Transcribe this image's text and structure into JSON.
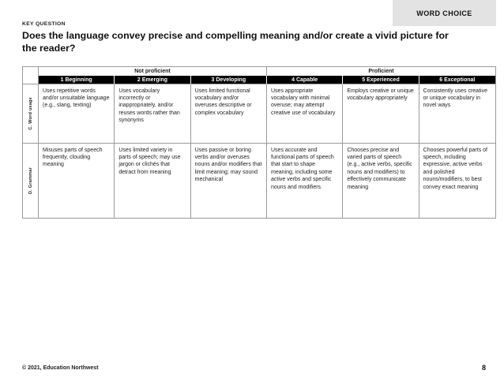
{
  "page": {
    "tag": "WORD CHOICE",
    "key_question_label": "KEY QUESTION",
    "title": "Does the language convey precise and compelling meaning and/or create a vivid picture for the reader?",
    "footer_copyright": "© 2021, Education Northwest",
    "page_number": "8"
  },
  "colors": {
    "tag_bg": "#e3e3e3",
    "band_bg": "#000000",
    "band_text": "#ffffff",
    "table_border": "#999999",
    "text": "#1a1a1a"
  },
  "table": {
    "group_headers": [
      "Not proficient",
      "Proficient"
    ],
    "level_headers": [
      "1 Beginning",
      "2 Emerging",
      "3 Developing",
      "4 Capable",
      "5 Experienced",
      "6 Exceptional"
    ],
    "rows": [
      {
        "label": "C. Word usage",
        "cells": [
          "Uses repetitive words and/or unsuitable language (e.g., slang, texting)",
          "Uses vocabulary incorrectly or inappropriately, and/or reuses words rather than synonyms",
          "Uses limited functional vocabulary and/or overuses descriptive or complex vocabulary",
          "Uses appropriate vocabulary with minimal overuse; may attempt creative use of vocabulary",
          "Employs creative or unique vocabulary appropriately",
          "Consistently uses creative or unique vocabulary in novel ways"
        ]
      },
      {
        "label": "D. Grammar",
        "cells": [
          "Misuses parts of speech frequently, clouding meaning",
          "Uses limited variety in parts of speech; may use jargon or clichés that detract from meaning",
          "Uses passive or boring verbs and/or overuses nouns and/or modifiers that limit meaning; may sound mechanical",
          "Uses accurate and functional parts of speech that start to shape meaning, including some active verbs and specific nouns and modifiers",
          "Chooses precise and varied parts of speech (e.g., active verbs, specific nouns and modifiers) to effectively communicate meaning",
          "Chooses powerful parts of speech, including expressive, active verbs and polished nouns/modifiers, to best convey exact meaning"
        ]
      }
    ]
  }
}
